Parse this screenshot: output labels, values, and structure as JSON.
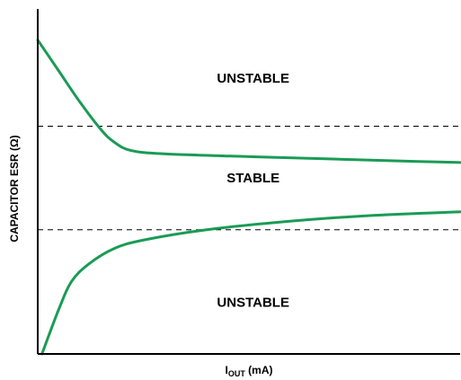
{
  "chart_data": {
    "type": "line",
    "title": "",
    "xlabel": {
      "main": "I",
      "sub": "OUT",
      "unit": " (mA)"
    },
    "ylabel": "CAPACITOR ESR (Ω)",
    "grid": false,
    "ticks": "none",
    "series": [
      {
        "color": "#1a9b55",
        "points": [
          [
            0,
            0.91
          ],
          [
            0.05,
            0.82
          ],
          [
            0.1,
            0.73
          ],
          [
            0.15,
            0.65
          ],
          [
            0.18,
            0.615
          ],
          [
            0.22,
            0.59
          ],
          [
            0.3,
            0.58
          ],
          [
            0.5,
            0.572
          ],
          [
            0.7,
            0.565
          ],
          [
            0.9,
            0.558
          ],
          [
            1,
            0.555
          ]
        ]
      },
      {
        "color": "#1a9b55",
        "points": [
          [
            0.01,
            0.0
          ],
          [
            0.05,
            0.13
          ],
          [
            0.08,
            0.21
          ],
          [
            0.12,
            0.26
          ],
          [
            0.18,
            0.305
          ],
          [
            0.25,
            0.33
          ],
          [
            0.4,
            0.36
          ],
          [
            0.6,
            0.385
          ],
          [
            0.8,
            0.402
          ],
          [
            1,
            0.412
          ]
        ]
      }
    ],
    "thresholds": [
      0.66,
      0.36
    ],
    "threshold_style": "dashed",
    "regions": [
      {
        "label": "UNSTABLE",
        "x": 0.51,
        "y": 0.8
      },
      {
        "label": "STABLE",
        "x": 0.51,
        "y": 0.51
      },
      {
        "label": "UNSTABLE",
        "x": 0.51,
        "y": 0.15
      }
    ],
    "xlim": [
      0,
      1
    ],
    "ylim": [
      0,
      1
    ],
    "axis_color": "#000000"
  }
}
